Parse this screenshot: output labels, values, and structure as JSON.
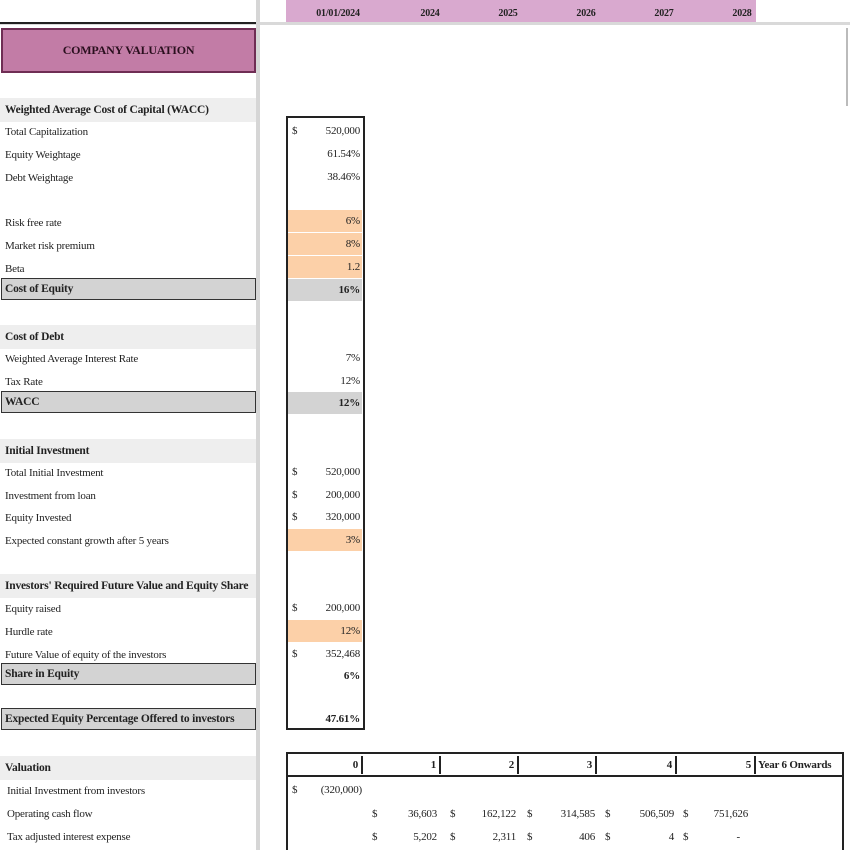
{
  "header": {
    "years": [
      "01/01/2024",
      "2024",
      "2025",
      "2026",
      "2027",
      "2028"
    ],
    "title": "COMPANY VALUATION"
  },
  "wacc": {
    "heading": "Weighted Average Cost of Capital (WACC)",
    "total_cap_label": "Total Capitalization",
    "total_cap_cur": "$",
    "total_cap_value": "520,000",
    "equity_weight_label": "Equity Weightage",
    "equity_weight_value": "61.54%",
    "debt_weight_label": "Debt Weightage",
    "debt_weight_value": "38.46%",
    "risk_free_label": "Risk free rate",
    "risk_free_value": "6%",
    "mrp_label": "Market risk premium",
    "mrp_value": "8%",
    "beta_label": "Beta",
    "beta_value": "1.2",
    "coe_label": "Cost of Equity",
    "coe_value": "16%"
  },
  "debt": {
    "heading": "Cost of Debt",
    "interest_label": "Weighted Average Interest Rate",
    "interest_value": "7%",
    "tax_label": "Tax Rate",
    "tax_value": "12%",
    "wacc_label": "WACC",
    "wacc_value": "12%"
  },
  "investment": {
    "heading": "Initial Investment",
    "total_label": "Total Initial Investment",
    "total_cur": "$",
    "total_value": "520,000",
    "loan_label": "Investment from loan",
    "loan_cur": "$",
    "loan_value": "200,000",
    "equity_label": "Equity Invested",
    "equity_cur": "$",
    "equity_value": "320,000",
    "growth_label": "Expected constant growth after 5 years",
    "growth_value": "3%"
  },
  "investors": {
    "heading": "Investors' Required Future Value and Equity Share",
    "raised_label": "Equity raised",
    "raised_cur": "$",
    "raised_value": "200,000",
    "hurdle_label": "Hurdle rate",
    "hurdle_value": "12%",
    "fv_label": "Future Value of equity of the investors",
    "fv_cur": "$",
    "fv_value": "352,468",
    "share_label": "Share in Equity",
    "share_value": "6%",
    "expected_label": "Expected Equity Percentage Offered to investors",
    "expected_value": "47.61%"
  },
  "valuation": {
    "heading": "Valuation",
    "periods": [
      "0",
      "1",
      "2",
      "3",
      "4",
      "5"
    ],
    "onwards": "Year 6 Onwards",
    "rows": [
      {
        "label": "Initial Investment from investors",
        "c0_cur": "$",
        "c0": "(320,000)"
      },
      {
        "label": "Operating cash flow",
        "cells": [
          {
            "cur": "$",
            "val": "36,603"
          },
          {
            "cur": "$",
            "val": "162,122"
          },
          {
            "cur": "$",
            "val": "314,585"
          },
          {
            "cur": "$",
            "val": "506,509"
          },
          {
            "cur": "$",
            "val": "751,626"
          }
        ]
      },
      {
        "label": "Tax adjusted interest expense",
        "cells": [
          {
            "cur": "$",
            "val": "5,202"
          },
          {
            "cur": "$",
            "val": "2,311"
          },
          {
            "cur": "$",
            "val": "406"
          },
          {
            "cur": "$",
            "val": "4"
          },
          {
            "cur": "$",
            "val": "-"
          }
        ]
      }
    ]
  },
  "colors": {
    "header_band": "#d9a9cf",
    "title_fill": "#c27ca6",
    "input_fill": "#fcd0a8",
    "total_fill": "#d3d3d3",
    "section_fill": "#eeeeee"
  }
}
